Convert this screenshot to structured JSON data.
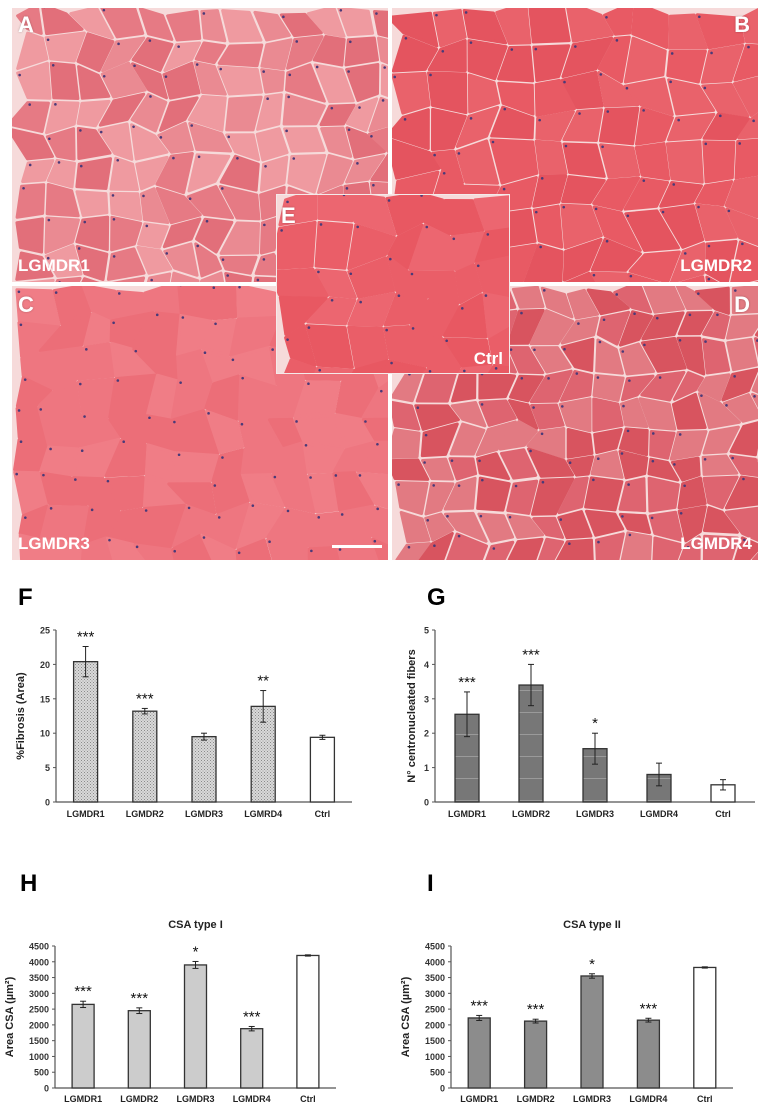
{
  "micrographs": {
    "panels": [
      {
        "id": "A",
        "group": "LGMDR1"
      },
      {
        "id": "B",
        "group": "LGMDR2"
      },
      {
        "id": "C",
        "group": "LGMDR3"
      },
      {
        "id": "D",
        "group": "LGMDR4"
      },
      {
        "id": "E",
        "group": "Ctrl"
      }
    ],
    "colors": {
      "tissue": "#e8606a",
      "tissue_light": "#ee8a8e",
      "membrane": "#f6dada",
      "nuclei": "#4a3a78",
      "background": "#ffffff"
    }
  },
  "panel_letters": {
    "F": "F",
    "G": "G",
    "H": "H",
    "I": "I"
  },
  "chart_data": [
    {
      "id": "F",
      "type": "bar",
      "title": "",
      "xlabel": "",
      "ylabel": "%Fibrosis (Area)",
      "categories": [
        "LGMDR1",
        "LGMDR2",
        "LGMDR3",
        "LGMRD4",
        "Ctrl"
      ],
      "values": [
        20.4,
        13.2,
        9.5,
        13.9,
        9.4
      ],
      "errors": [
        2.2,
        0.4,
        0.5,
        2.3,
        0.3
      ],
      "significance": [
        "***",
        "***",
        "",
        "**",
        ""
      ],
      "ylim": [
        0,
        25
      ],
      "yticks": [
        0,
        5,
        10,
        15,
        20,
        25
      ],
      "bar_fill": [
        "#cfcfcf",
        "#cfcfcf",
        "#cfcfcf",
        "#cfcfcf",
        "#ffffff"
      ],
      "bar_pattern": "dotted",
      "grid": false
    },
    {
      "id": "G",
      "type": "bar",
      "title": "",
      "xlabel": "",
      "ylabel": "N° centronucleated fibers",
      "categories": [
        "LGMDR1",
        "LGMDR2",
        "LGMDR3",
        "LGMDR4",
        "Ctrl"
      ],
      "values": [
        2.55,
        3.4,
        1.55,
        0.8,
        0.5
      ],
      "errors": [
        0.65,
        0.6,
        0.45,
        0.33,
        0.15
      ],
      "significance": [
        "***",
        "***",
        "*",
        "",
        ""
      ],
      "ylim": [
        0,
        5
      ],
      "yticks": [
        0,
        1,
        2,
        3,
        4,
        5
      ],
      "bar_fill": [
        "#7a7a7a",
        "#7a7a7a",
        "#7a7a7a",
        "#7a7a7a",
        "#ffffff"
      ],
      "bar_pattern": "grid",
      "grid": false
    },
    {
      "id": "H",
      "type": "bar",
      "title": "CSA type I",
      "xlabel": "",
      "ylabel": "Area CSA (µm²)",
      "categories": [
        "LGMDR1",
        "LGMDR2",
        "LGMDR3",
        "LGMDR4",
        "Ctrl"
      ],
      "values": [
        2650,
        2450,
        3900,
        1880,
        4200
      ],
      "errors": [
        100,
        90,
        110,
        70,
        20
      ],
      "significance": [
        "***",
        "***",
        "*",
        "***",
        ""
      ],
      "ylim": [
        0,
        4500
      ],
      "yticks": [
        0,
        500,
        1000,
        1500,
        2000,
        2500,
        3000,
        3500,
        4000,
        4500
      ],
      "bar_fill": [
        "#cccccc",
        "#cccccc",
        "#cccccc",
        "#cccccc",
        "#ffffff"
      ],
      "bar_pattern": "solid",
      "grid": false
    },
    {
      "id": "I",
      "type": "bar",
      "title": "CSA type II",
      "xlabel": "",
      "ylabel": "Area CSA (µm²)",
      "categories": [
        "LGMDR1",
        "LGMDR2",
        "LGMDR3",
        "LGMDR4",
        "Ctrl"
      ],
      "values": [
        2220,
        2120,
        3550,
        2150,
        3820
      ],
      "errors": [
        80,
        60,
        70,
        60,
        20
      ],
      "significance": [
        "***",
        "***",
        "*",
        "***",
        ""
      ],
      "ylim": [
        0,
        4500
      ],
      "yticks": [
        0,
        500,
        1000,
        1500,
        2000,
        2500,
        3000,
        3500,
        4000,
        4500
      ],
      "bar_fill": [
        "#8c8c8c",
        "#8c8c8c",
        "#8c8c8c",
        "#8c8c8c",
        "#ffffff"
      ],
      "bar_pattern": "solid",
      "grid": false
    }
  ]
}
